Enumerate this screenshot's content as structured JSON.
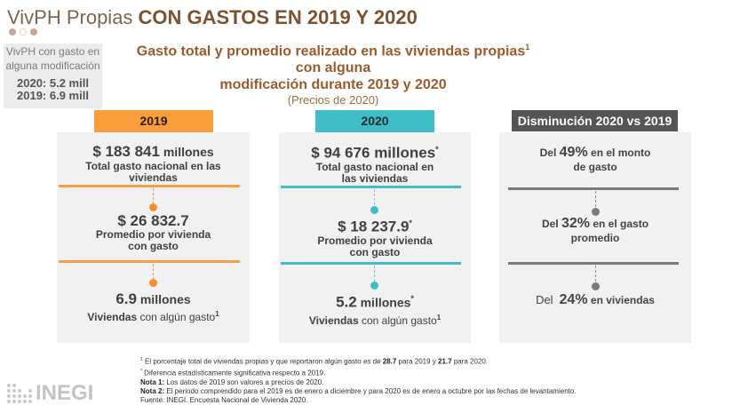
{
  "title": {
    "light": "VivPH Propias ",
    "bold": "CON GASTOS EN 2019 Y 2020"
  },
  "side_note": {
    "line1": "VivPH con gasto en",
    "line2": "alguna modificación",
    "v2020": "2020: 5.2 mill",
    "v2019": "2019: 6.9 mill"
  },
  "subtitle": {
    "line1": "Gasto total y promedio realizado en las viviendas propias",
    "line1_sup": "1",
    "line1_end": " con alguna",
    "line2": "modificación durante 2019 y 2020",
    "note": "(Precios de 2020)"
  },
  "panel_2019": {
    "header": "2019",
    "color": "#fa9e3c",
    "total_value": "$ 183 841",
    "total_unit": " millones",
    "total_label_1": "Total gasto nacional en las",
    "total_label_2": "viviendas",
    "avg_value": "$ 26 832.7",
    "avg_label_1": "Promedio por vivienda",
    "avg_label_2": "con gasto",
    "homes_value": "6.9",
    "homes_unit": " millones",
    "homes_label_bold": "Viviendas",
    "homes_label_rest": " con algún gasto",
    "homes_label_sup": "1"
  },
  "panel_2020": {
    "header": "2020",
    "color": "#3fbec8",
    "total_value": "$ 94 676 millones",
    "total_sup": "*",
    "total_label_1": "Total gasto nacional en",
    "total_label_2": "las viviendas",
    "avg_value": "$ 18 237.9",
    "avg_sup": "*",
    "avg_label_1": "Promedio por vivienda",
    "avg_label_2": "con gasto",
    "homes_value": "5.2",
    "homes_unit": " millones",
    "homes_sup": "*",
    "homes_label_bold": "Viviendas",
    "homes_label_rest": " con algún gasto",
    "homes_label_sup": "1"
  },
  "panel_decrease": {
    "header": "Disminución 2020 vs 2019",
    "color": "#555555",
    "item1_pre": "Del ",
    "item1_pct": "49%",
    "item1_post": " en el monto",
    "item1_line2": "de gasto",
    "item2_pre": "Del ",
    "item2_pct": "32%",
    "item2_post": " en el gasto",
    "item2_line2": "promedio",
    "item3_pre": "Del ",
    "item3_pct": "24%",
    "item3_post": " en viviendas"
  },
  "footnotes": {
    "f1_sup": "1",
    "f1_a": " El porcentaje total de viviendas propias y que reportaron algún gasto es de ",
    "f1_b": "28.7",
    "f1_c": " para 2019 y ",
    "f1_d": "21.7",
    "f1_e": " para 2020.",
    "f2_sup": "*",
    "f2": " Diferencia estadísticamente significativa respecto a 2019.",
    "n1_label": "Nota 1:",
    "n1": " Los datos de 2019 son valores a precios de 2020.",
    "n2_label": "Nota 2:",
    "n2": " El periodo comprendido para el 2019 es de enero a diciembre y para 2020 es de enero a octubre por las fechas de levantamiento.",
    "source": "Fuente: INEGI. Encuesta Nacional de Vivienda 2020."
  },
  "logo": {
    "text": "INEGI"
  }
}
